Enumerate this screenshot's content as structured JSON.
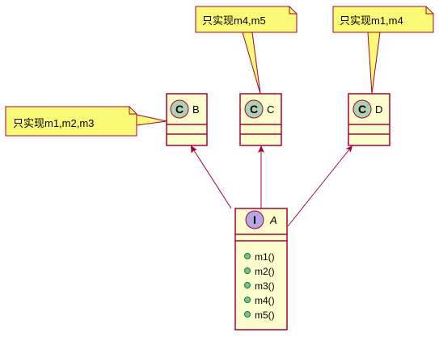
{
  "diagram": {
    "type": "uml-class",
    "interface": {
      "stereotype_letter": "I",
      "name": "A",
      "methods": [
        "m1()",
        "m2()",
        "m3()",
        "m4()",
        "m5()"
      ]
    },
    "classes": [
      {
        "id": "B",
        "letter": "C",
        "name": "B"
      },
      {
        "id": "C",
        "letter": "C",
        "name": "C"
      },
      {
        "id": "D",
        "letter": "C",
        "name": "D"
      }
    ],
    "notes": [
      {
        "attached_to": "B",
        "text": "只实现m1,m2,m3"
      },
      {
        "attached_to": "C",
        "text": "只实现m4,m5"
      },
      {
        "attached_to": "D",
        "text": "只实现m1,m4"
      }
    ],
    "relations": [
      {
        "from": "A",
        "to": "B",
        "kind": "realization"
      },
      {
        "from": "A",
        "to": "C",
        "kind": "realization"
      },
      {
        "from": "A",
        "to": "D",
        "kind": "realization"
      }
    ],
    "colors": {
      "box_fill": "#FEFECE",
      "border": "#A80036",
      "note_fill": "#FBFB77",
      "class_badge": "#ADD1B2",
      "interface_badge": "#B4A7E5",
      "method_dot": "#84BE84",
      "method_dot_stroke": "#038048"
    }
  }
}
